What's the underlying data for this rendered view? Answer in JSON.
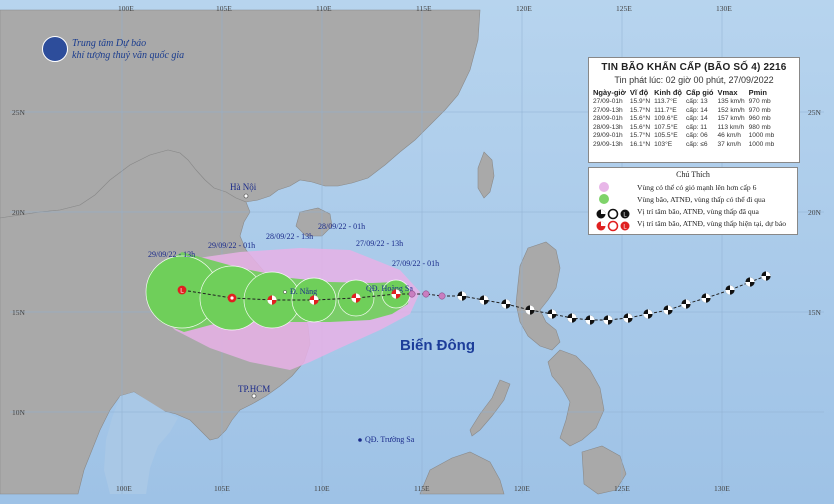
{
  "agency": {
    "line1": "Trung tâm Dự báo",
    "line2": "khí tượng thuỷ văn quốc gia"
  },
  "bulletin": {
    "title": "TIN BÃO KHẨN CẤP  (BÃO SỐ 4)  2216",
    "issued": "Tin phát lúc: 02 giờ 00 phút, 27/09/2022",
    "headers": [
      "Ngày-giờ",
      "Vĩ độ",
      "Kinh độ",
      "Cấp gió",
      "Vmax",
      "Pmin"
    ],
    "rows": [
      [
        "27/09-01h",
        "15.9°N",
        "113.7°E",
        "cấp: 13",
        "135 km/h",
        "970 mb"
      ],
      [
        "27/09-13h",
        "15.7°N",
        "111.7°E",
        "cấp: 14",
        "152 km/h",
        "970 mb"
      ],
      [
        "28/09-01h",
        "15.6°N",
        "109.6°E",
        "cấp: 14",
        "157 km/h",
        "960 mb"
      ],
      [
        "28/09-13h",
        "15.6°N",
        "107.5°E",
        "cấp: 11",
        "113 km/h",
        "980 mb"
      ],
      [
        "29/09-01h",
        "15.7°N",
        "105.5°E",
        "cấp: 06",
        "46 km/h",
        "1000 mb"
      ],
      [
        "29/09-13h",
        "16.1°N",
        "103°E",
        "cấp: ≤6",
        "37 km/h",
        "1000 mb"
      ]
    ]
  },
  "legend": {
    "title": "Chú Thích",
    "items": [
      "Vùng có thể có gió mạnh lên hơn cấp 6",
      "Vùng bão, ATNĐ, vùng thấp có thể đi qua",
      "Vị trí tâm bão, ATNĐ, vùng thấp đã qua",
      "Vị trí tâm bão, ATNĐ, vùng thấp hiện tại, dự báo"
    ],
    "colors": {
      "wind_zone": "#e8b6e8",
      "storm_zone": "#7fd36a",
      "past_center": "#111111",
      "forecast_center": "#e02020"
    }
  },
  "axes": {
    "top_lon": [
      "100E",
      "105E",
      "110E",
      "115E",
      "120E",
      "125E",
      "130E"
    ],
    "bottom_lon": [
      "100E",
      "105E",
      "110E",
      "115E",
      "120E",
      "125E",
      "130E"
    ],
    "left_lat": [
      "25N",
      "20N",
      "15N",
      "10N"
    ],
    "right_lat": [
      "25N",
      "20N",
      "15N"
    ]
  },
  "places": {
    "hanoi": "Hà Nội",
    "danang": "Đ. Nẵng",
    "hoangsa": "QĐ. Hoàng Sa",
    "hcm": "TP.HCM",
    "truongsa": "QĐ. Trường Sa",
    "sea": "Biển Đông"
  },
  "forecast_labels": {
    "t2701": "27/09/22 - 01h",
    "t2713": "27/09/22 - 13h",
    "t2801": "28/09/22 - 01h",
    "t2813": "28/09/22 - 13h",
    "t2901": "29/09/22 - 01h",
    "t2913": "29/09/22 - 13h"
  },
  "track": {
    "past": [
      {
        "lon": 132.2,
        "lat": 16.8
      },
      {
        "lon": 131.4,
        "lat": 16.5
      },
      {
        "lon": 130.4,
        "lat": 16.1
      },
      {
        "lon": 129.2,
        "lat": 15.7
      },
      {
        "lon": 128.2,
        "lat": 15.4
      },
      {
        "lon": 127.3,
        "lat": 15.1
      },
      {
        "lon": 126.3,
        "lat": 14.9
      },
      {
        "lon": 125.3,
        "lat": 14.7
      },
      {
        "lon": 124.3,
        "lat": 14.6
      },
      {
        "lon": 123.4,
        "lat": 14.6
      },
      {
        "lon": 122.5,
        "lat": 14.7
      },
      {
        "lon": 121.5,
        "lat": 14.9
      },
      {
        "lon": 120.4,
        "lat": 15.1
      },
      {
        "lon": 119.2,
        "lat": 15.4
      },
      {
        "lon": 118.1,
        "lat": 15.6
      },
      {
        "lon": 117.0,
        "lat": 15.8
      },
      {
        "lon": 116.0,
        "lat": 15.8
      },
      {
        "lon": 115.2,
        "lat": 15.9
      },
      {
        "lon": 114.5,
        "lat": 15.9
      }
    ],
    "forecast": [
      {
        "lon": 113.7,
        "lat": 15.9,
        "label": "S"
      },
      {
        "lon": 111.7,
        "lat": 15.7,
        "label": "S"
      },
      {
        "lon": 109.6,
        "lat": 15.6,
        "label": "S"
      },
      {
        "lon": 107.5,
        "lat": 15.6,
        "label": "S"
      },
      {
        "lon": 105.5,
        "lat": 15.7,
        "label": "D"
      },
      {
        "lon": 103.0,
        "lat": 16.1,
        "label": "L"
      }
    ]
  }
}
